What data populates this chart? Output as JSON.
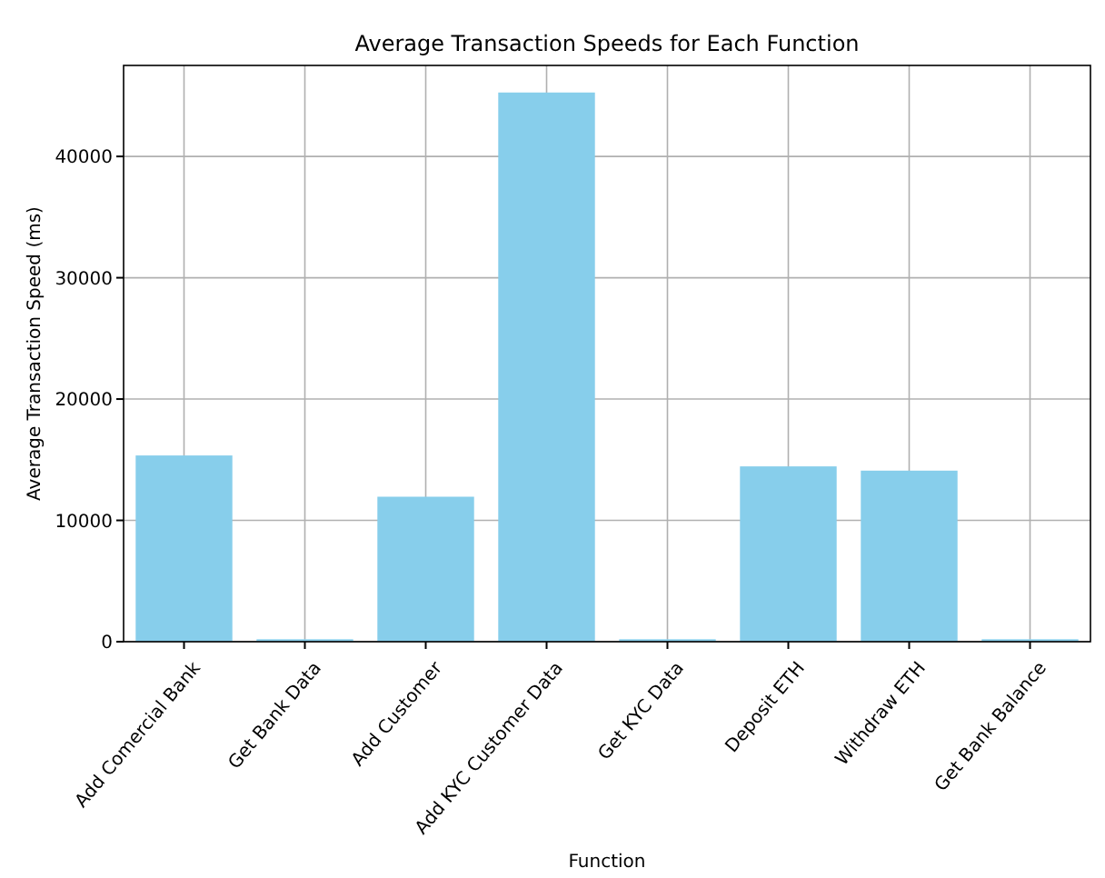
{
  "chart_data": {
    "type": "bar",
    "title": "Average Transaction Speeds for Each Function",
    "xlabel": "Function",
    "ylabel": "Average Transaction Speed (ms)",
    "categories": [
      "Add Comercial Bank",
      "Get Bank Data",
      "Add Customer",
      "Add KYC Customer Data",
      "Get KYC Data",
      "Deposit ETH",
      "Withdraw ETH",
      "Get Bank Balance"
    ],
    "values": [
      15350,
      200,
      11950,
      45270,
      200,
      14450,
      14100,
      200
    ],
    "color": "#87ceeb",
    "ylim": [
      0,
      47500
    ],
    "yticks": [
      0,
      10000,
      20000,
      30000,
      40000
    ],
    "grid": true
  }
}
